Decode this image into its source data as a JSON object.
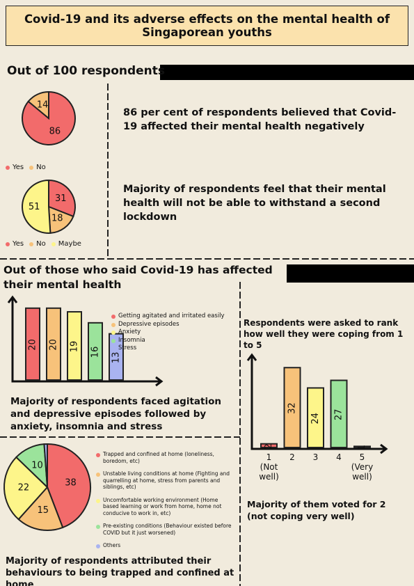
{
  "title": "Covid-19 and its adverse effects on the mental health of Singaporean youths",
  "sections": [
    "Out of 100 respondents",
    "Out of those who said Covid-19 has affected their mental health"
  ],
  "chart_data": [
    {
      "type": "pie",
      "categories": [
        "Yes",
        "No"
      ],
      "values": [
        86,
        14
      ],
      "colors": [
        "#f26b6b",
        "#f7c27a"
      ],
      "annotation": "86 per cent of respondents believed that Covid-19 affected their mental health negatively"
    },
    {
      "type": "pie",
      "categories": [
        "Yes",
        "No",
        "Maybe"
      ],
      "values": [
        31,
        18,
        51
      ],
      "colors": [
        "#f26b6b",
        "#f7c27a",
        "#fdf58a"
      ],
      "annotation": "Majority of respondents feel that their mental health will not be able to withstand a second lockdown"
    },
    {
      "type": "bar",
      "categories": [
        "Getting agitated and irritated easily",
        "Depressive episodes",
        "Anxiety",
        "Insomnia",
        "Stress"
      ],
      "values": [
        20,
        20,
        19,
        16,
        13
      ],
      "colors": [
        "#f26b6b",
        "#f7c27a",
        "#fdf58a",
        "#9be39b",
        "#a9b3f0"
      ],
      "ylim": [
        0,
        23
      ],
      "legend": true,
      "annotation": "Majority of respondents faced agitation and depressive episodes followed by anxiety, insomnia and stress"
    },
    {
      "type": "bar",
      "title": "Respondents were asked to rank how well they were coping from 1 to 5",
      "categories": [
        "1 (Not well)",
        "2",
        "3",
        "4",
        "5 (Very well)"
      ],
      "values": [
        2,
        32,
        24,
        27,
        1
      ],
      "colors": [
        "#f26b6b",
        "#f7c27a",
        "#fdf58a",
        "#9be39b",
        "#a9b3f0"
      ],
      "ylim": [
        0,
        37
      ],
      "legend": false,
      "annotation": "Majority of them voted for 2 (not coping very well)"
    },
    {
      "type": "pie",
      "categories": [
        "Trapped and confined at home (loneliness, boredom, etc)",
        "Unstable living conditions at home (Fighting and quarrelling at home, stress from parents and siblings, etc)",
        "Uncomfortable working environment (Home based learning or work from home, home not conducive to work in, etc)",
        "Pre-existing conditions (Behaviour existed before COVID but it just worsened)",
        "Others"
      ],
      "values": [
        38,
        15,
        22,
        10,
        1
      ],
      "colors": [
        "#f26b6b",
        "#f7c27a",
        "#fdf58a",
        "#9be39b",
        "#a9b3f0"
      ],
      "annotation": "Majority of respondents attributed their behaviours to being trapped and confined at home"
    }
  ]
}
